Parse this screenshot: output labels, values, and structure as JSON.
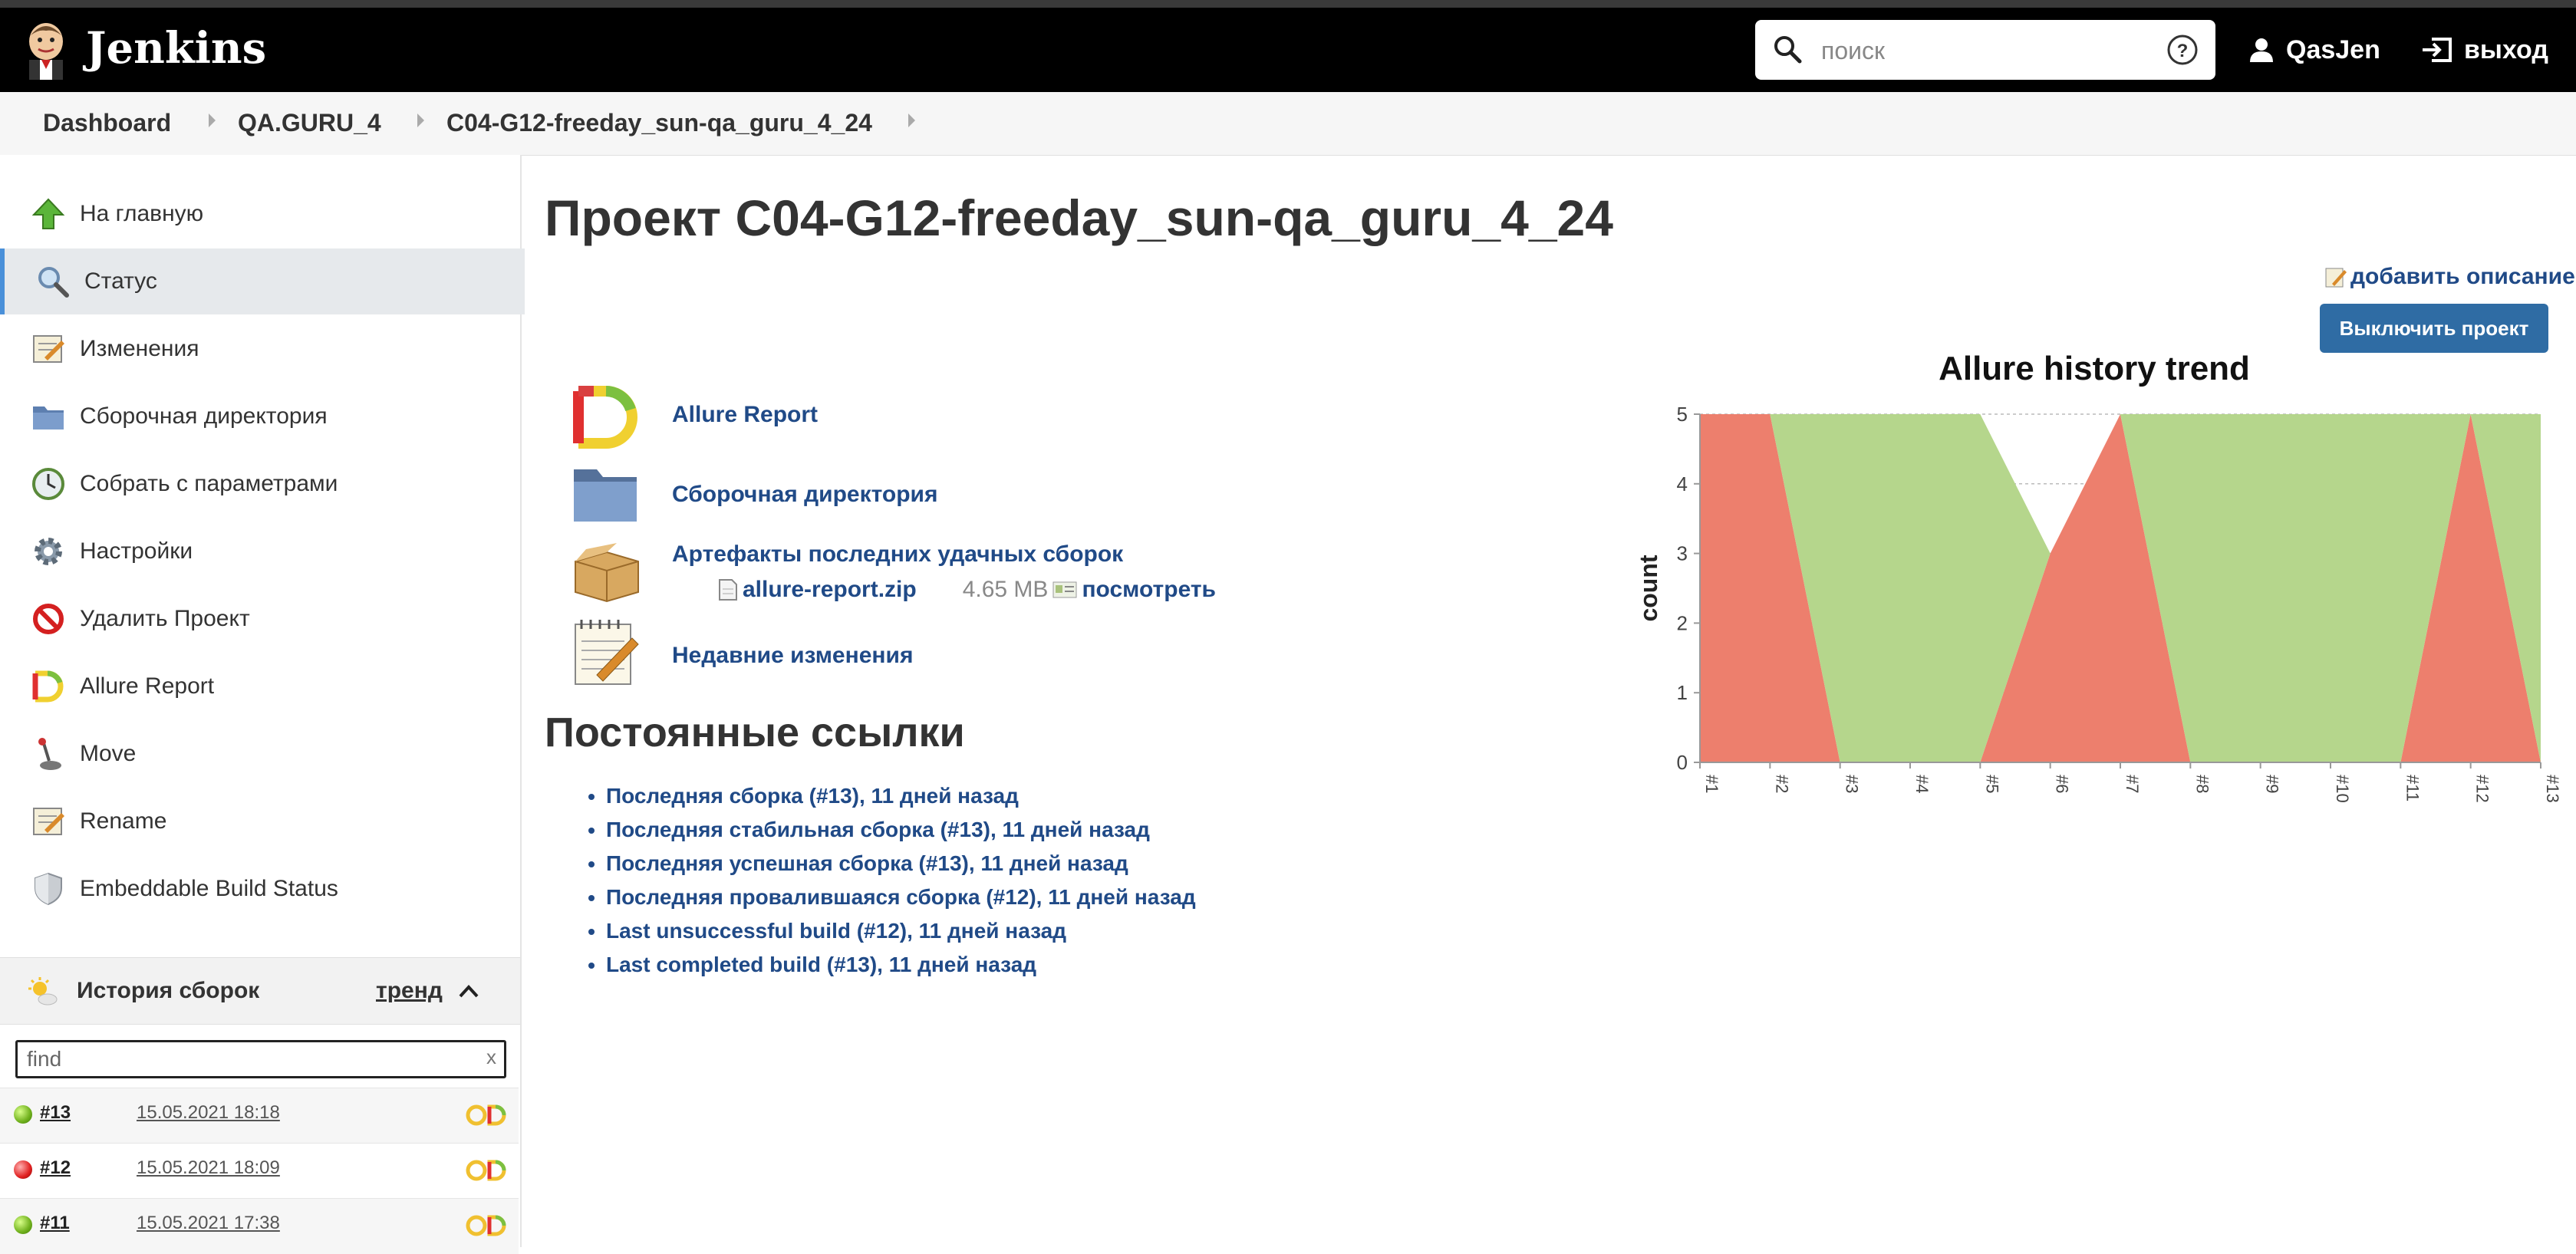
{
  "header": {
    "brand": "Jenkins",
    "search_placeholder": "поиск",
    "user": "QasJen",
    "logout": "выход"
  },
  "breadcrumb": [
    "Dashboard",
    "QA.GURU_4",
    "C04-G12-freeday_sun-qa_guru_4_24"
  ],
  "sidebar": {
    "tasks": [
      {
        "label": "На главную",
        "icon": "up-arrow-icon"
      },
      {
        "label": "Статус",
        "icon": "search-icon",
        "active": true
      },
      {
        "label": "Изменения",
        "icon": "notepad-icon"
      },
      {
        "label": "Сборочная директория",
        "icon": "folder-icon"
      },
      {
        "label": "Собрать с параметрами",
        "icon": "clock-icon"
      },
      {
        "label": "Настройки",
        "icon": "gear-icon"
      },
      {
        "label": "Удалить Проект",
        "icon": "no-icon"
      },
      {
        "label": "Allure Report",
        "icon": "allure-icon"
      },
      {
        "label": "Move",
        "icon": "joystick-icon"
      },
      {
        "label": "Rename",
        "icon": "notepad-icon"
      },
      {
        "label": "Embeddable Build Status",
        "icon": "shield-icon"
      }
    ],
    "history": {
      "title": "История сборок",
      "trend": "тренд",
      "find_placeholder": "find",
      "clear": "x",
      "builds": [
        {
          "num": "#13",
          "date": "15.05.2021 18:18",
          "status": "success"
        },
        {
          "num": "#12",
          "date": "15.05.2021 18:09",
          "status": "failed"
        },
        {
          "num": "#11",
          "date": "15.05.2021 17:38",
          "status": "success"
        }
      ]
    }
  },
  "main": {
    "title": "Проект C04-G12-freeday_sun-qa_guru_4_24",
    "add_description": "добавить описание",
    "disable_button": "Выключить проект",
    "links": {
      "allure": "Allure Report",
      "workspace": "Сборочная директория",
      "artifacts": "Артефакты последних удачных сборок",
      "artifact_file": "allure-report.zip",
      "artifact_size": "4.65 MB",
      "artifact_view": "посмотреть",
      "changes": "Недавние изменения"
    },
    "permalinks_heading": "Постоянные ссылки",
    "permalinks": [
      "Последняя сборка (#13), 11 дней назад",
      "Последняя стабильная сборка (#13), 11 дней назад",
      "Последняя успешная сборка (#13), 11 дней назад",
      "Последняя провалившаяся сборка (#12), 11 дней назад",
      "Last unsuccessful build (#12), 11 дней назад",
      "Last completed build (#13), 11 дней назад"
    ]
  },
  "chart_data": {
    "type": "area",
    "title": "Allure history trend",
    "ylabel": "count",
    "xlabel": "",
    "categories": [
      "#1",
      "#2",
      "#3",
      "#4",
      "#5",
      "#6",
      "#7",
      "#8",
      "#9",
      "#10",
      "#11",
      "#12",
      "#13"
    ],
    "ylim": [
      0,
      5
    ],
    "yticks": [
      0,
      1,
      2,
      3,
      4,
      5
    ],
    "series": [
      {
        "color": "#ed7f6d",
        "values": [
          5,
          5,
          0,
          0,
          0,
          3,
          5,
          0,
          0,
          0,
          0,
          5,
          0
        ]
      },
      {
        "color": "#b5d68c",
        "values": [
          0,
          0,
          5,
          5,
          5,
          0,
          0,
          5,
          5,
          5,
          5,
          0,
          5
        ]
      }
    ],
    "stacked": true,
    "grid": true,
    "legend": "none"
  }
}
